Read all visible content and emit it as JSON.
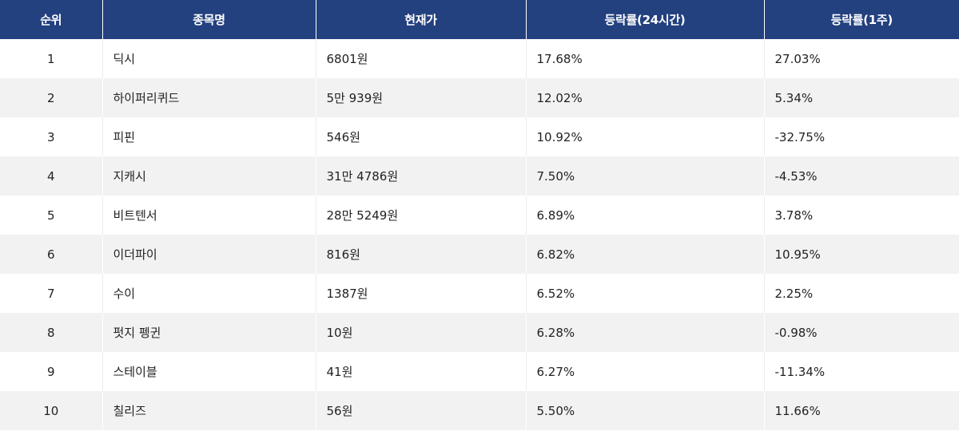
{
  "table": {
    "headers": [
      "순위",
      "종목명",
      "현재가",
      "등락률(24시간)",
      "등락률(1주)"
    ],
    "rows": [
      {
        "rank": "1",
        "name": "딕시",
        "price": "6801원",
        "change_24h": "17.68%",
        "change_1w": "27.03%"
      },
      {
        "rank": "2",
        "name": "하이퍼리퀴드",
        "price": "5만 939원",
        "change_24h": "12.02%",
        "change_1w": "5.34%"
      },
      {
        "rank": "3",
        "name": "피핀",
        "price": "546원",
        "change_24h": "10.92%",
        "change_1w": "-32.75%"
      },
      {
        "rank": "4",
        "name": "지캐시",
        "price": "31만 4786원",
        "change_24h": "7.50%",
        "change_1w": "-4.53%"
      },
      {
        "rank": "5",
        "name": "비트텐서",
        "price": "28만 5249원",
        "change_24h": "6.89%",
        "change_1w": "3.78%"
      },
      {
        "rank": "6",
        "name": "이더파이",
        "price": "816원",
        "change_24h": "6.82%",
        "change_1w": "10.95%"
      },
      {
        "rank": "7",
        "name": "수이",
        "price": "1387원",
        "change_24h": "6.52%",
        "change_1w": "2.25%"
      },
      {
        "rank": "8",
        "name": "펏지 펭귄",
        "price": "10원",
        "change_24h": "6.28%",
        "change_1w": "-0.98%"
      },
      {
        "rank": "9",
        "name": "스테이블",
        "price": "41원",
        "change_24h": "6.27%",
        "change_1w": "-11.34%"
      },
      {
        "rank": "10",
        "name": "칠리즈",
        "price": "56원",
        "change_24h": "5.50%",
        "change_1w": "11.66%"
      }
    ]
  }
}
